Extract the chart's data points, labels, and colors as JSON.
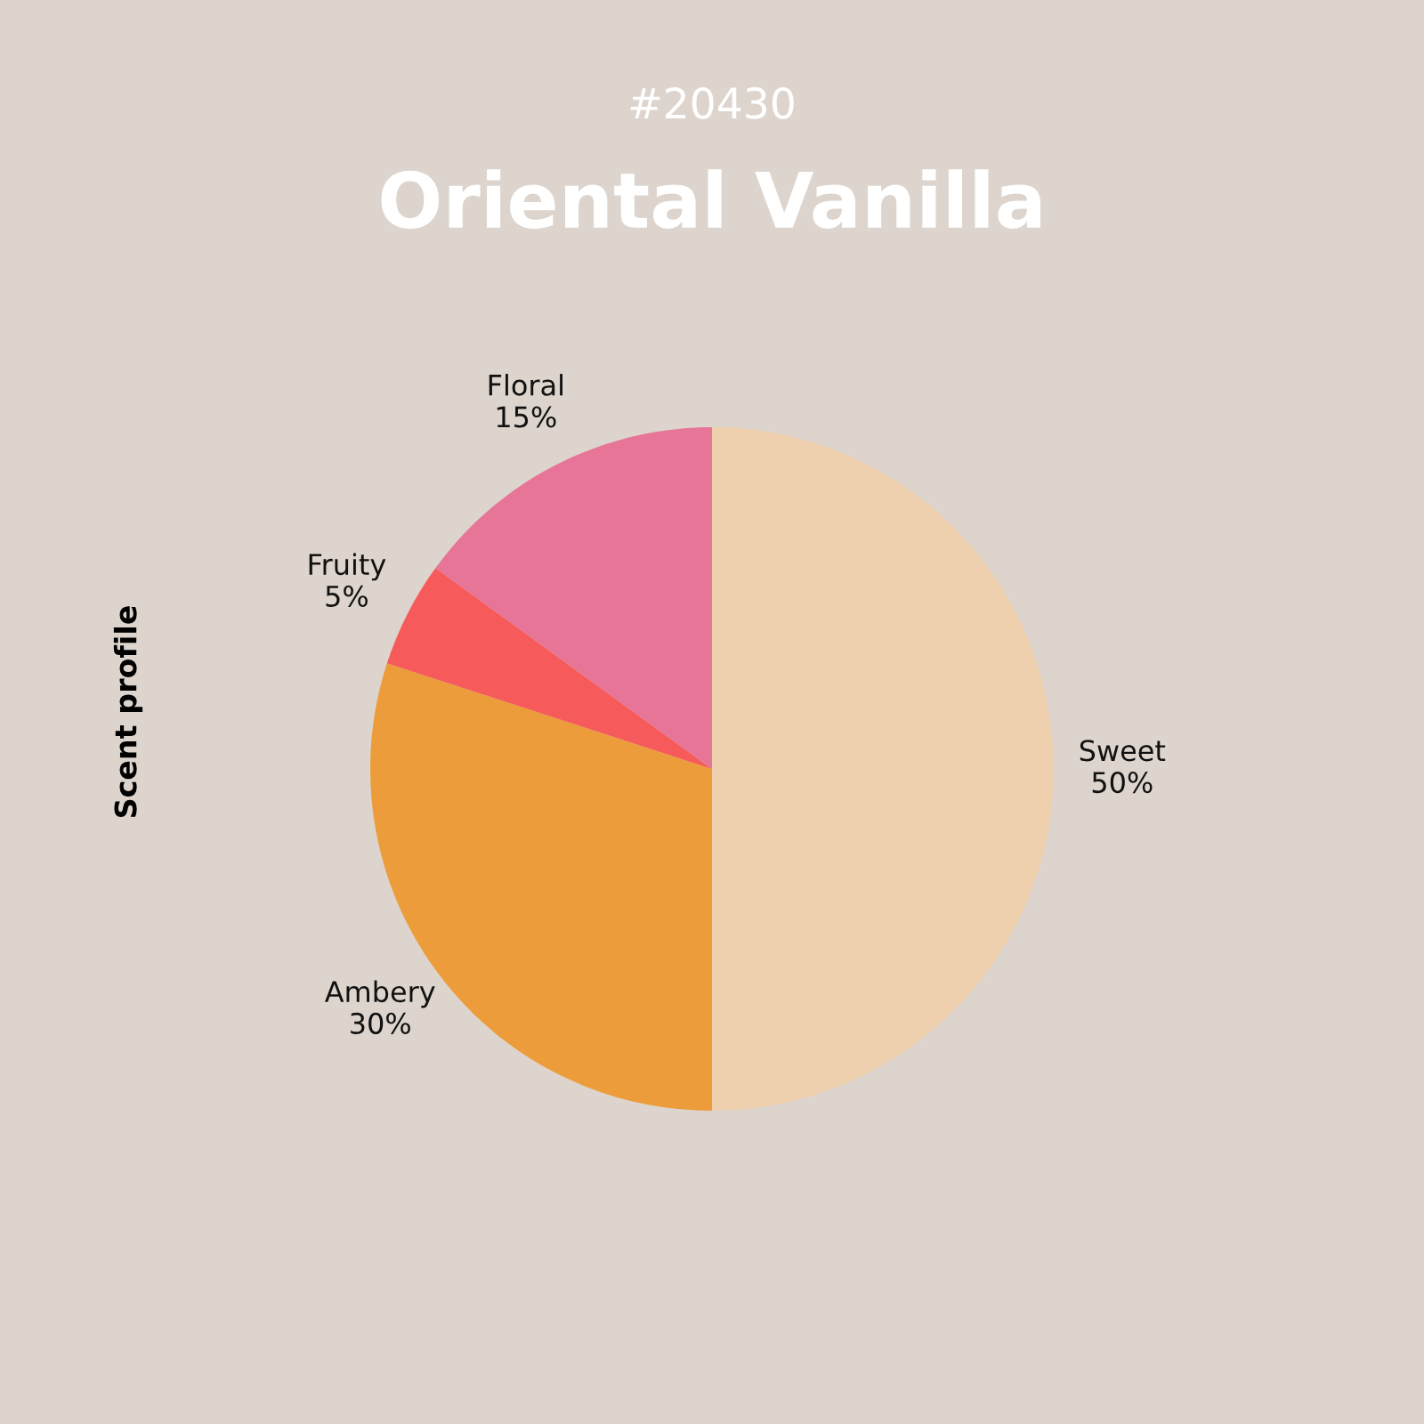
{
  "chart_data": {
    "type": "pie",
    "subtitle": "#20430",
    "title": "Oriental Vanilla",
    "ylabel": "Scent profile",
    "categories": [
      "Sweet",
      "Ambery",
      "Fruity",
      "Floral"
    ],
    "values": [
      50,
      30,
      5,
      15
    ],
    "colors": [
      "#eecfae",
      "#ed9c3b",
      "#f65a5a",
      "#e77597"
    ],
    "value_labels": [
      "50%",
      "30%",
      "5%",
      "15%"
    ]
  }
}
